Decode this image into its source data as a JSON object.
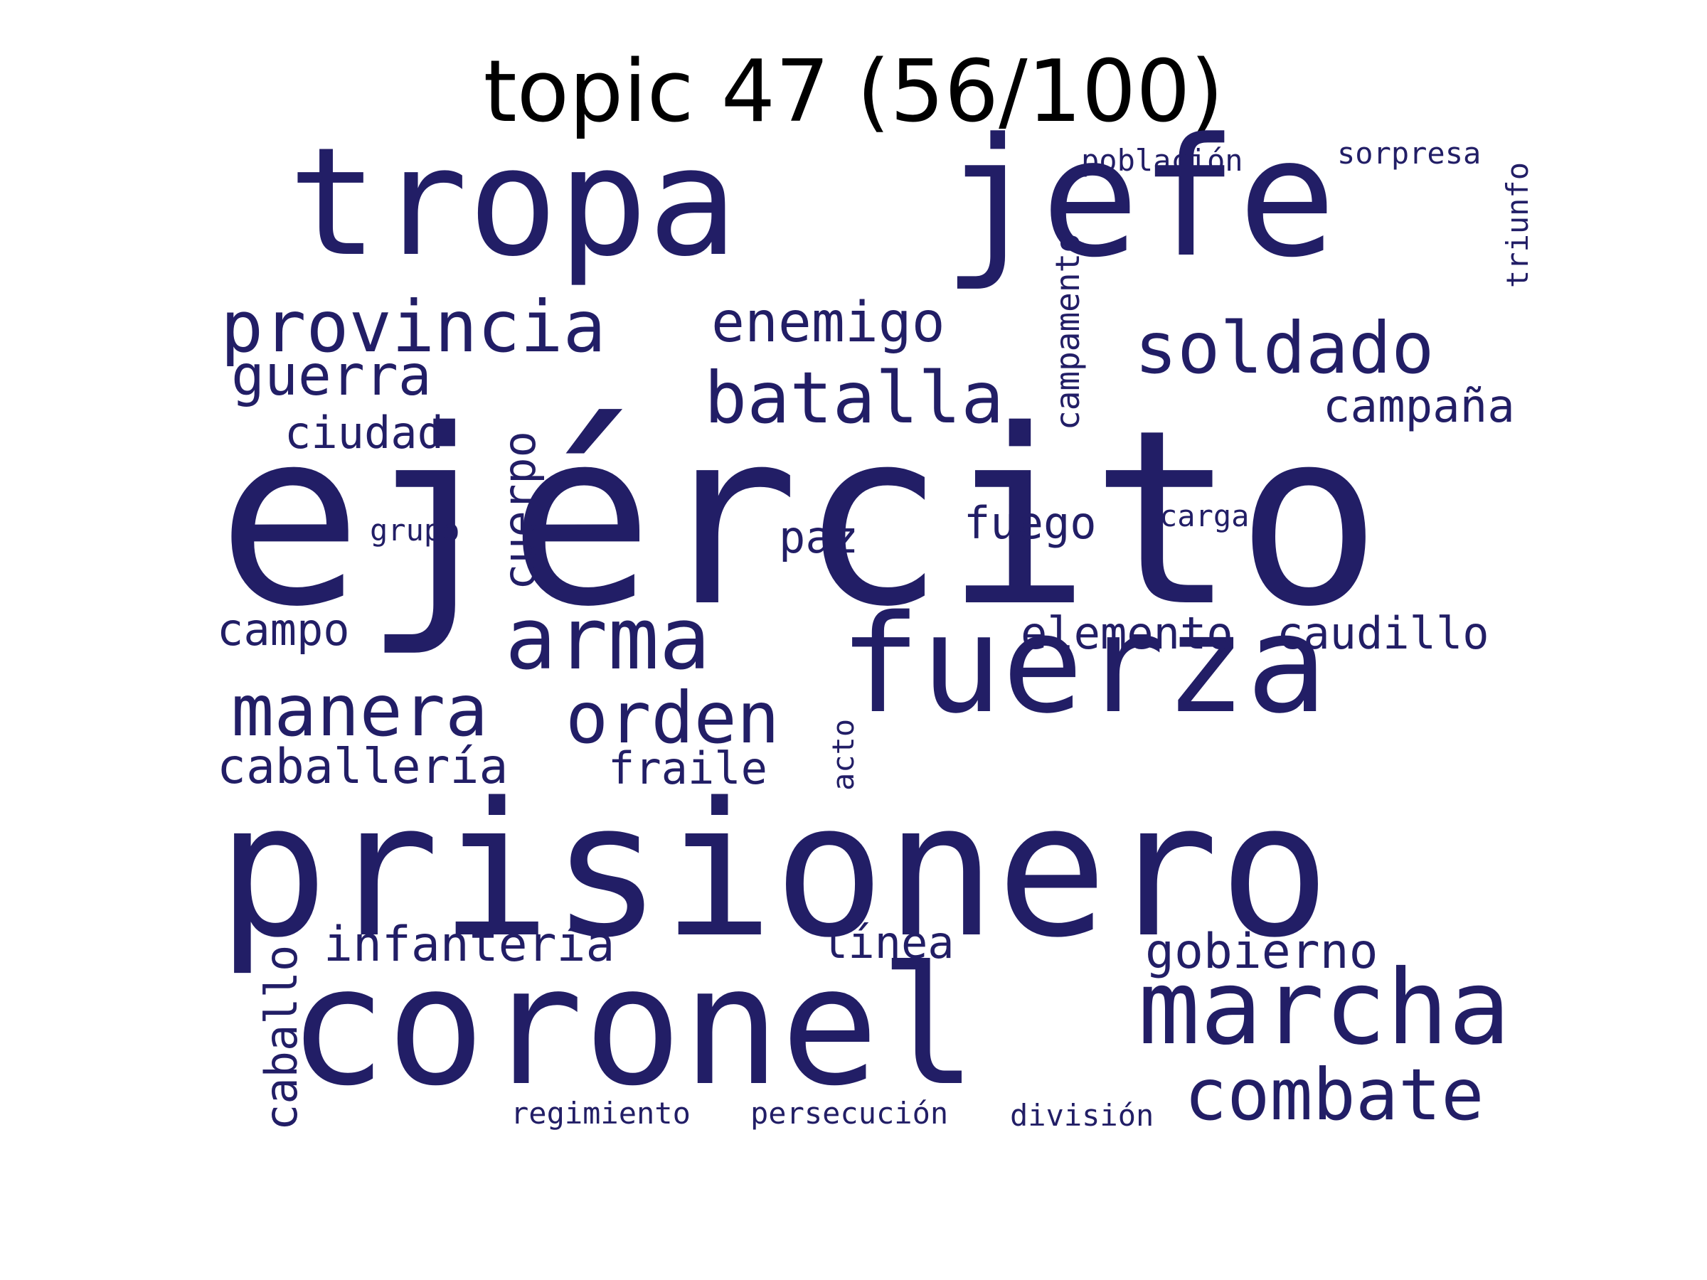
{
  "title": "topic 47 (56/100)",
  "color": "#221e66",
  "words": [
    {
      "id": "ejercito",
      "text": "ejército"
    },
    {
      "id": "prisionero",
      "text": "prisionero"
    },
    {
      "id": "coronel",
      "text": "coronel"
    },
    {
      "id": "tropa",
      "text": "tropa"
    },
    {
      "id": "jefe",
      "text": "jefe"
    },
    {
      "id": "fuerza",
      "text": "fuerza"
    },
    {
      "id": "marcha",
      "text": "marcha"
    },
    {
      "id": "arma",
      "text": "arma"
    },
    {
      "id": "combate",
      "text": "combate"
    },
    {
      "id": "batalla",
      "text": "batalla"
    },
    {
      "id": "provincia",
      "text": "provincia"
    },
    {
      "id": "soldado",
      "text": "soldado"
    },
    {
      "id": "manera",
      "text": "manera"
    },
    {
      "id": "orden",
      "text": "orden"
    },
    {
      "id": "enemigo",
      "text": "enemigo"
    },
    {
      "id": "guerra",
      "text": "guerra"
    },
    {
      "id": "gobierno",
      "text": "gobierno"
    },
    {
      "id": "infanteria",
      "text": "infantería"
    },
    {
      "id": "caballeria",
      "text": "caballería"
    },
    {
      "id": "campana",
      "text": "campaña"
    },
    {
      "id": "caudillo",
      "text": "caudillo"
    },
    {
      "id": "elemento",
      "text": "elemento"
    },
    {
      "id": "fuego",
      "text": "fuego"
    },
    {
      "id": "fraile",
      "text": "fraile"
    },
    {
      "id": "ciudad",
      "text": "ciudad"
    },
    {
      "id": "campo",
      "text": "campo"
    },
    {
      "id": "linea",
      "text": "línea"
    },
    {
      "id": "paz",
      "text": "paz"
    },
    {
      "id": "cuerpo",
      "text": "cuerpo"
    },
    {
      "id": "caballo",
      "text": "caballo"
    },
    {
      "id": "campamento",
      "text": "campamento"
    },
    {
      "id": "poblacion",
      "text": "población"
    },
    {
      "id": "sorpresa",
      "text": "sorpresa"
    },
    {
      "id": "triunfo",
      "text": "triunfo"
    },
    {
      "id": "carga",
      "text": "carga"
    },
    {
      "id": "grupo",
      "text": "grupo"
    },
    {
      "id": "acto",
      "text": "acto"
    },
    {
      "id": "regimiento",
      "text": "regimiento"
    },
    {
      "id": "persecucion",
      "text": "persecución"
    },
    {
      "id": "division",
      "text": "división"
    }
  ]
}
